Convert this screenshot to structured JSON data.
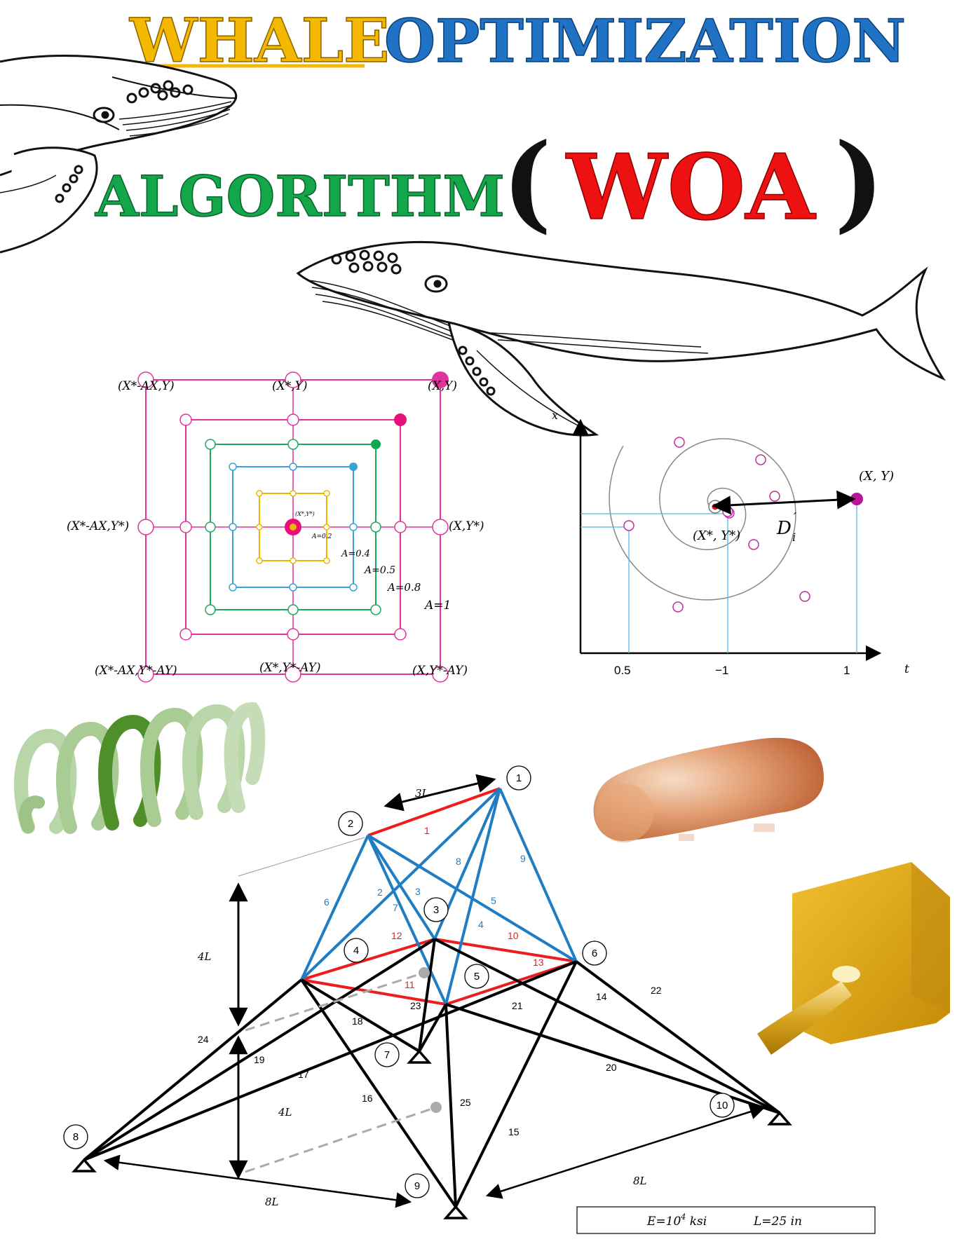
{
  "title": {
    "word1": "WHALE",
    "word2": "OPTIMIZATION",
    "word3": "ALGORITHM",
    "open_paren": "(",
    "acronym": "WOA",
    "close_paren": ")"
  },
  "colors": {
    "whale_word": "#f5b800",
    "optimization_word": "#1f72c4",
    "algorithm_word": "#13a64b",
    "acronym": "#ee1111",
    "pink": "#e0339c",
    "green": "#1ea862",
    "blue": "#3aa3d8",
    "yellow": "#f2b400",
    "truss_red": "#ee1c1c",
    "truss_blue": "#1f7dc4"
  },
  "square_diagram": {
    "labels": {
      "top_left": "(X*-AX,Y)",
      "top_mid": "(X*,Y)",
      "top_right": "(X,Y)",
      "mid_left": "(X*-AX,Y*)",
      "mid_right": "(X,Y*)",
      "bot_left": "(X*-AX,Y*-AY)",
      "bot_mid": "(X*,Y*-AY)",
      "bot_right": "(X,Y*-AY)",
      "center": "(X*,Y*)"
    },
    "A_values": [
      "A=0.2",
      "A=0.4",
      "A=0.5",
      "A=0.8",
      "A=1"
    ]
  },
  "spiral_diagram": {
    "y_axis": "x",
    "x_axis": "t",
    "ticks": [
      "0.5",
      "−1",
      "1"
    ],
    "point_label": "(X, Y)",
    "center_label": "(X*, Y*)",
    "distance_label": "D",
    "distance_sub": "i",
    "distance_prime": "′"
  },
  "truss": {
    "nodes": [
      "1",
      "2",
      "3",
      "4",
      "5",
      "6",
      "7",
      "8",
      "9",
      "10"
    ],
    "member_labels_red": [
      "1",
      "10",
      "11",
      "12",
      "13"
    ],
    "member_labels_blue": [
      "2",
      "3",
      "4",
      "5",
      "6",
      "7",
      "8",
      "9"
    ],
    "member_labels_black": [
      "14",
      "15",
      "16",
      "17",
      "18",
      "19",
      "20",
      "21",
      "22",
      "23",
      "24",
      "25"
    ],
    "dimensions": {
      "top": "3L",
      "upper_height": "4L",
      "lower_height": "4L",
      "base_left": "8L",
      "base_right": "8L"
    },
    "legend": {
      "E": "E=10",
      "E_exp": "4",
      "E_unit": " ksi",
      "L": "L=25 in"
    }
  }
}
